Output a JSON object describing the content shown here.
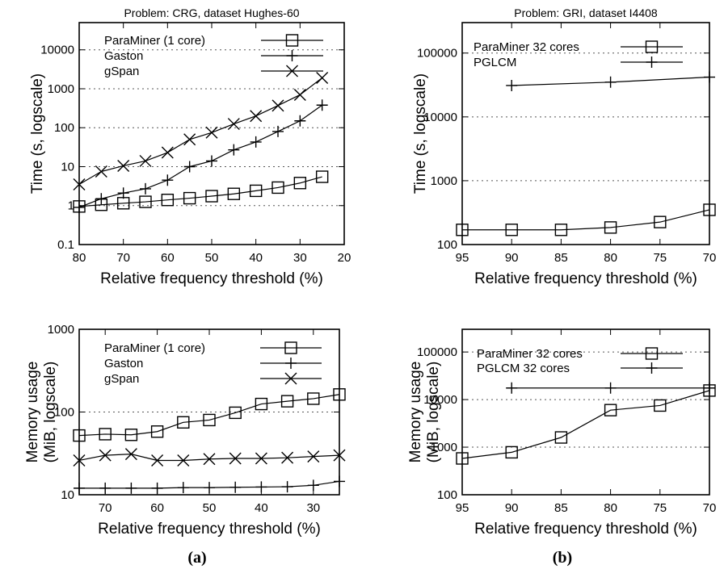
{
  "chart_data": [
    {
      "type": "line",
      "title": "Problem: CRG, dataset Hughes-60",
      "xlabel": "Relative frequency threshold (%)",
      "ylabel": "Time (s, logscale)",
      "yscale": "log",
      "xlim": [
        80,
        20
      ],
      "ylim": [
        0.1,
        50000
      ],
      "xticks": [
        "80",
        "70",
        "60",
        "50",
        "40",
        "30",
        "20"
      ],
      "yticks": [
        "0.1",
        "1",
        "10",
        "100",
        "1000",
        "10000"
      ],
      "grid": "dotted horizontal",
      "legend": "top-left",
      "series": [
        {
          "name": "ParaMiner (1 core)",
          "marker": "square",
          "x": [
            80,
            75,
            70,
            65,
            60,
            55,
            50,
            45,
            40,
            35,
            30,
            25
          ],
          "values": [
            0.95,
            1.05,
            1.15,
            1.25,
            1.4,
            1.55,
            1.75,
            2.0,
            2.4,
            2.9,
            3.8,
            5.5
          ]
        },
        {
          "name": "Gaston",
          "marker": "plus",
          "x": [
            80,
            75,
            70,
            65,
            60,
            55,
            50,
            45,
            40,
            35,
            30,
            25
          ],
          "values": [
            0.9,
            1.5,
            2.1,
            2.7,
            4.5,
            10,
            14,
            27,
            43,
            80,
            150,
            380
          ]
        },
        {
          "name": "gSpan",
          "marker": "x",
          "x": [
            80,
            75,
            70,
            65,
            60,
            55,
            50,
            45,
            40,
            35,
            30,
            25
          ],
          "values": [
            3.5,
            7.5,
            10.5,
            14,
            23,
            50,
            75,
            125,
            200,
            370,
            700,
            1900
          ]
        }
      ]
    },
    {
      "type": "line",
      "title": "Problem: GRI, dataset I4408",
      "xlabel": "Relative frequency threshold (%)",
      "ylabel": "Time (s, logscale)",
      "yscale": "log",
      "xlim": [
        95,
        70
      ],
      "ylim": [
        100,
        300000
      ],
      "xticks": [
        "95",
        "90",
        "85",
        "80",
        "75",
        "70"
      ],
      "yticks": [
        "100",
        "1000",
        "10000",
        "100000"
      ],
      "grid": "dotted horizontal",
      "legend": "top-left",
      "series": [
        {
          "name": "ParaMiner 32 cores",
          "marker": "square",
          "x": [
            95,
            90,
            85,
            80,
            75,
            70
          ],
          "values": [
            170,
            170,
            170,
            185,
            225,
            350
          ]
        },
        {
          "name": "PGLCM",
          "marker": "plus",
          "x": [
            90,
            80,
            70
          ],
          "values": [
            31000,
            35000,
            42000
          ]
        }
      ]
    },
    {
      "type": "line",
      "title": "",
      "xlabel": "Relative frequency threshold (%)",
      "ylabel": "Memory usage (MiB, logscale)",
      "yscale": "log",
      "xlim": [
        75,
        25
      ],
      "ylim": [
        10,
        1000
      ],
      "xticks": [
        "70",
        "60",
        "50",
        "40",
        "30"
      ],
      "yticks": [
        "10",
        "100",
        "1000"
      ],
      "grid": "dotted horizontal",
      "legend": "top-left",
      "series": [
        {
          "name": "ParaMiner (1 core)",
          "marker": "square",
          "x": [
            75,
            70,
            65,
            60,
            55,
            50,
            45,
            40,
            35,
            30,
            25
          ],
          "values": [
            52,
            54,
            53,
            58,
            75,
            80,
            98,
            125,
            135,
            145,
            163
          ]
        },
        {
          "name": "Gaston",
          "marker": "plus",
          "x": [
            75,
            70,
            65,
            60,
            55,
            50,
            45,
            40,
            35,
            30,
            25
          ],
          "values": [
            12,
            12,
            12,
            12,
            12.2,
            12.2,
            12.3,
            12.4,
            12.5,
            13,
            14.5
          ]
        },
        {
          "name": "gSpan",
          "marker": "x",
          "x": [
            75,
            70,
            65,
            60,
            55,
            50,
            45,
            40,
            35,
            30,
            25
          ],
          "values": [
            26,
            30,
            31,
            26,
            26,
            27,
            27.5,
            27.5,
            28,
            29,
            30
          ]
        }
      ]
    },
    {
      "type": "line",
      "title": "",
      "xlabel": "Relative frequency threshold (%)",
      "ylabel": "Memory usage (MiB, logscale)",
      "yscale": "log",
      "xlim": [
        95,
        70
      ],
      "ylim": [
        100,
        300000
      ],
      "xticks": [
        "95",
        "90",
        "85",
        "80",
        "75",
        "70"
      ],
      "yticks": [
        "100",
        "1000",
        "10000",
        "100000"
      ],
      "grid": "dotted horizontal",
      "legend": "top-left",
      "series": [
        {
          "name": "ParaMiner 32 cores",
          "marker": "square",
          "x": [
            95,
            90,
            85,
            80,
            75,
            70
          ],
          "values": [
            580,
            780,
            1600,
            6000,
            7500,
            15500
          ]
        },
        {
          "name": "PGLCM 32 cores",
          "marker": "plus",
          "x": [
            90,
            80,
            70
          ],
          "values": [
            17500,
            17500,
            17500
          ]
        }
      ]
    }
  ],
  "captions": [
    "(a)",
    "(b)"
  ],
  "colors": {
    "line": "#000000",
    "grid": "#555555"
  }
}
